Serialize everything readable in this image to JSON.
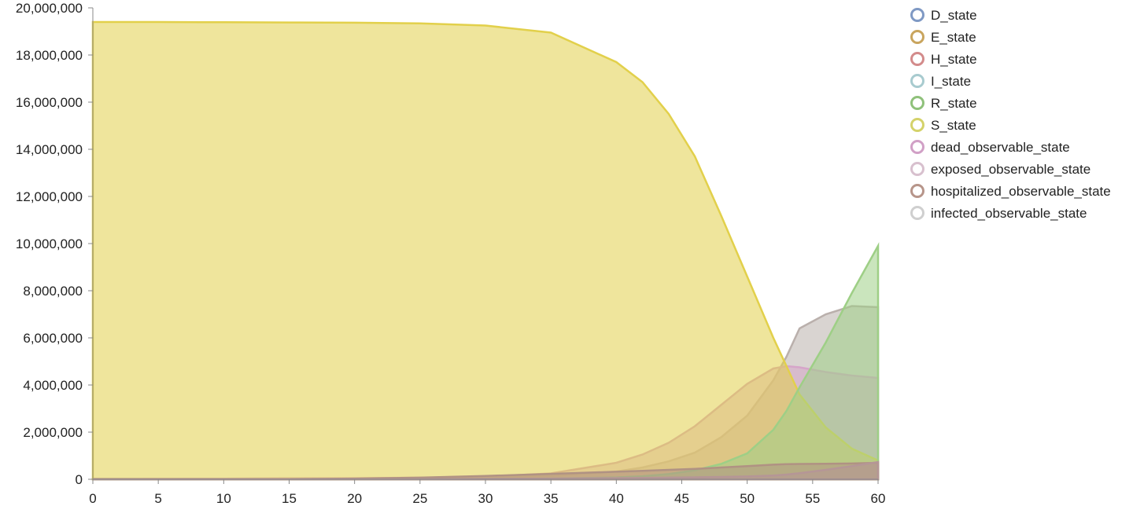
{
  "chart_data": {
    "type": "area",
    "title": "",
    "xlabel": "",
    "ylabel": "",
    "xlim": [
      0,
      60
    ],
    "ylim": [
      0,
      20000000
    ],
    "x_ticks": [
      0,
      5,
      10,
      15,
      20,
      25,
      30,
      35,
      40,
      45,
      50,
      55,
      60
    ],
    "x_tick_labels": [
      "0",
      "5",
      "10",
      "15",
      "20",
      "25",
      "30",
      "35",
      "40",
      "45",
      "50",
      "55",
      "60"
    ],
    "y_ticks": [
      0,
      2000000,
      4000000,
      6000000,
      8000000,
      10000000,
      12000000,
      14000000,
      16000000,
      18000000,
      20000000
    ],
    "y_tick_labels": [
      "0",
      "2,000,000",
      "4,000,000",
      "6,000,000",
      "8,000,000",
      "10,000,000",
      "12,000,000",
      "14,000,000",
      "16,000,000",
      "18,000,000",
      "20,000,000"
    ],
    "grid": false,
    "legend_position": "right",
    "legend": [
      "D_state",
      "E_state",
      "H_state",
      "I_state",
      "R_state",
      "S_state",
      "dead_observable_state",
      "exposed_observable_state",
      "hospitalized_observable_state",
      "infected_observable_state"
    ],
    "x": [
      0,
      5,
      10,
      15,
      20,
      25,
      30,
      35,
      40,
      42,
      44,
      46,
      48,
      50,
      52,
      53,
      54,
      56,
      58,
      60
    ],
    "series": [
      {
        "name": "infected_observable_state",
        "color": "#bab0ac",
        "values": [
          20000,
          22000,
          26000,
          32000,
          40000,
          52000,
          80000,
          140000,
          330000,
          500000,
          760000,
          1130000,
          1780000,
          2700000,
          4200000,
          5200000,
          6400000,
          7000000,
          7350000,
          7300000
        ]
      },
      {
        "name": "exposed_observable_state",
        "color": "#d6a5c9",
        "values": [
          20000,
          23000,
          28000,
          36000,
          48000,
          66000,
          110000,
          250000,
          700000,
          1050000,
          1550000,
          2250000,
          3150000,
          4050000,
          4700000,
          4800000,
          4750000,
          4550000,
          4400000,
          4300000
        ]
      },
      {
        "name": "S_state",
        "color": "#e2d04b",
        "values": [
          19400000,
          19400000,
          19390000,
          19380000,
          19370000,
          19340000,
          19250000,
          18950000,
          17700000,
          16850000,
          15500000,
          13700000,
          11200000,
          8600000,
          6000000,
          4800000,
          3600000,
          2200000,
          1300000,
          800000
        ]
      },
      {
        "name": "R_state",
        "color": "#9ecf86",
        "values": [
          0,
          0,
          0,
          1000,
          2000,
          5000,
          12000,
          30000,
          80000,
          130000,
          220000,
          380000,
          650000,
          1100000,
          2100000,
          2900000,
          3900000,
          5800000,
          7900000,
          9900000
        ]
      },
      {
        "name": "hospitalized_observable_state",
        "color": "#b09283",
        "values": [
          0,
          1000,
          3000,
          10000,
          30000,
          70000,
          140000,
          230000,
          320000,
          360000,
          400000,
          440000,
          500000,
          560000,
          620000,
          640000,
          650000,
          660000,
          670000,
          700000
        ]
      },
      {
        "name": "dead_observable_state",
        "color": "#b59696",
        "values": [
          0,
          0,
          0,
          1000,
          3000,
          8000,
          15000,
          30000,
          50000,
          60000,
          70000,
          85000,
          100000,
          120000,
          160000,
          200000,
          260000,
          400000,
          560000,
          730000
        ]
      }
    ],
    "legend_colors": {
      "D_state": "#7f99c4",
      "E_state": "#c9a55e",
      "H_state": "#d38b8b",
      "I_state": "#a8cbcf",
      "R_state": "#8fc17b",
      "S_state": "#d4d26a",
      "dead_observable_state": "#d1a0c6",
      "exposed_observable_state": "#d8c0ce",
      "hospitalized_observable_state": "#b7958a",
      "infected_observable_state": "#cfcfcf"
    }
  }
}
